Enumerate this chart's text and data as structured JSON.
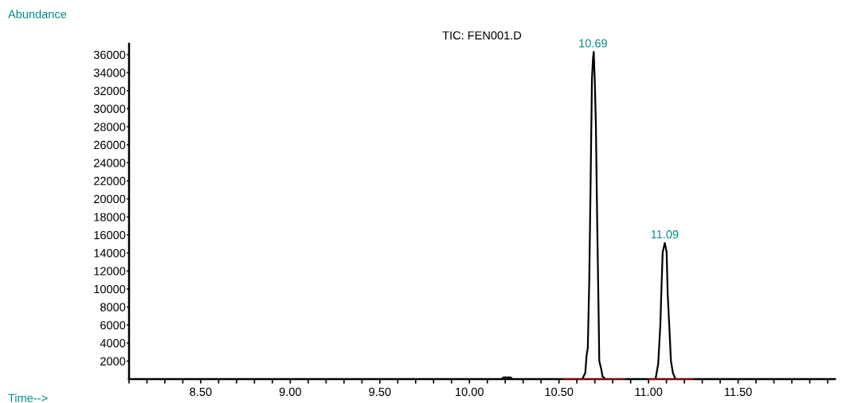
{
  "chart_data": {
    "type": "line",
    "title": "TIC: FEN001.D",
    "xlabel": "Time-->",
    "ylabel": "Abundance",
    "series": [
      {
        "color": "#000000",
        "x": [
          8.1,
          10.18,
          10.19,
          10.23,
          10.24,
          10.63,
          10.647,
          10.654,
          10.661,
          10.669,
          10.676,
          10.684,
          10.69,
          10.694,
          10.7,
          10.706,
          10.713,
          10.721,
          10.725,
          10.736,
          10.743,
          10.76,
          11.039,
          11.054,
          11.066,
          11.072,
          11.079,
          11.091,
          11.101,
          11.107,
          11.116,
          11.125,
          11.136,
          11.15,
          12.04
        ],
        "values": [
          0,
          0,
          200,
          200,
          0,
          0,
          700,
          2600,
          3500,
          10900,
          20900,
          33200,
          35600,
          36300,
          33000,
          28200,
          17900,
          7600,
          2000,
          1100,
          300,
          0,
          0,
          1700,
          6100,
          10000,
          14100,
          15100,
          14100,
          9400,
          5800,
          2000,
          700,
          0,
          0
        ]
      },
      {
        "color": "#8b0000",
        "x": [
          10.527,
          10.865
        ],
        "values": [
          0,
          0
        ]
      },
      {
        "color": "#8b0000",
        "x": [
          11.007,
          11.247
        ],
        "values": [
          0,
          0
        ]
      }
    ],
    "annotations": [
      {
        "text": "10.69",
        "x": 10.69,
        "y": 36300
      },
      {
        "text": "11.09",
        "x": 11.09,
        "y": 15100
      }
    ],
    "xlim": [
      8.1,
      12.04
    ],
    "xticks": [
      {
        "value": 8.1,
        "label": null
      },
      {
        "value": 8.2,
        "label": null
      },
      {
        "value": 8.3,
        "label": null
      },
      {
        "value": 8.4,
        "label": null
      },
      {
        "value": 8.5,
        "label": "8.50"
      },
      {
        "value": 8.6,
        "label": null
      },
      {
        "value": 8.7,
        "label": null
      },
      {
        "value": 8.8,
        "label": null
      },
      {
        "value": 8.9,
        "label": null
      },
      {
        "value": 9.0,
        "label": "9.00"
      },
      {
        "value": 9.1,
        "label": null
      },
      {
        "value": 9.2,
        "label": null
      },
      {
        "value": 9.3,
        "label": null
      },
      {
        "value": 9.4,
        "label": null
      },
      {
        "value": 9.5,
        "label": "9.50"
      },
      {
        "value": 9.6,
        "label": null
      },
      {
        "value": 9.7,
        "label": null
      },
      {
        "value": 9.8,
        "label": null
      },
      {
        "value": 9.9,
        "label": null
      },
      {
        "value": 10.0,
        "label": "10.00"
      },
      {
        "value": 10.1,
        "label": null
      },
      {
        "value": 10.2,
        "label": null
      },
      {
        "value": 10.3,
        "label": null
      },
      {
        "value": 10.4,
        "label": null
      },
      {
        "value": 10.5,
        "label": "10.50"
      },
      {
        "value": 10.6,
        "label": null
      },
      {
        "value": 10.7,
        "label": null
      },
      {
        "value": 10.8,
        "label": null
      },
      {
        "value": 10.9,
        "label": null
      },
      {
        "value": 11.0,
        "label": "11.00"
      },
      {
        "value": 11.1,
        "label": null
      },
      {
        "value": 11.2,
        "label": null
      },
      {
        "value": 11.3,
        "label": null
      },
      {
        "value": 11.4,
        "label": null
      },
      {
        "value": 11.5,
        "label": "11.50"
      },
      {
        "value": 11.6,
        "label": null
      },
      {
        "value": 11.7,
        "label": null
      },
      {
        "value": 11.8,
        "label": null
      },
      {
        "value": 11.9,
        "label": null
      },
      {
        "value": 12.0,
        "label": null
      }
    ],
    "ylim": [
      0,
      37200
    ],
    "yticks": [
      2000,
      4000,
      6000,
      8000,
      10000,
      12000,
      14000,
      16000,
      18000,
      20000,
      22000,
      24000,
      26000,
      28000,
      30000,
      32000,
      34000,
      36000
    ],
    "grid": false,
    "legend": false,
    "marker": "none",
    "line_style": "solid"
  }
}
